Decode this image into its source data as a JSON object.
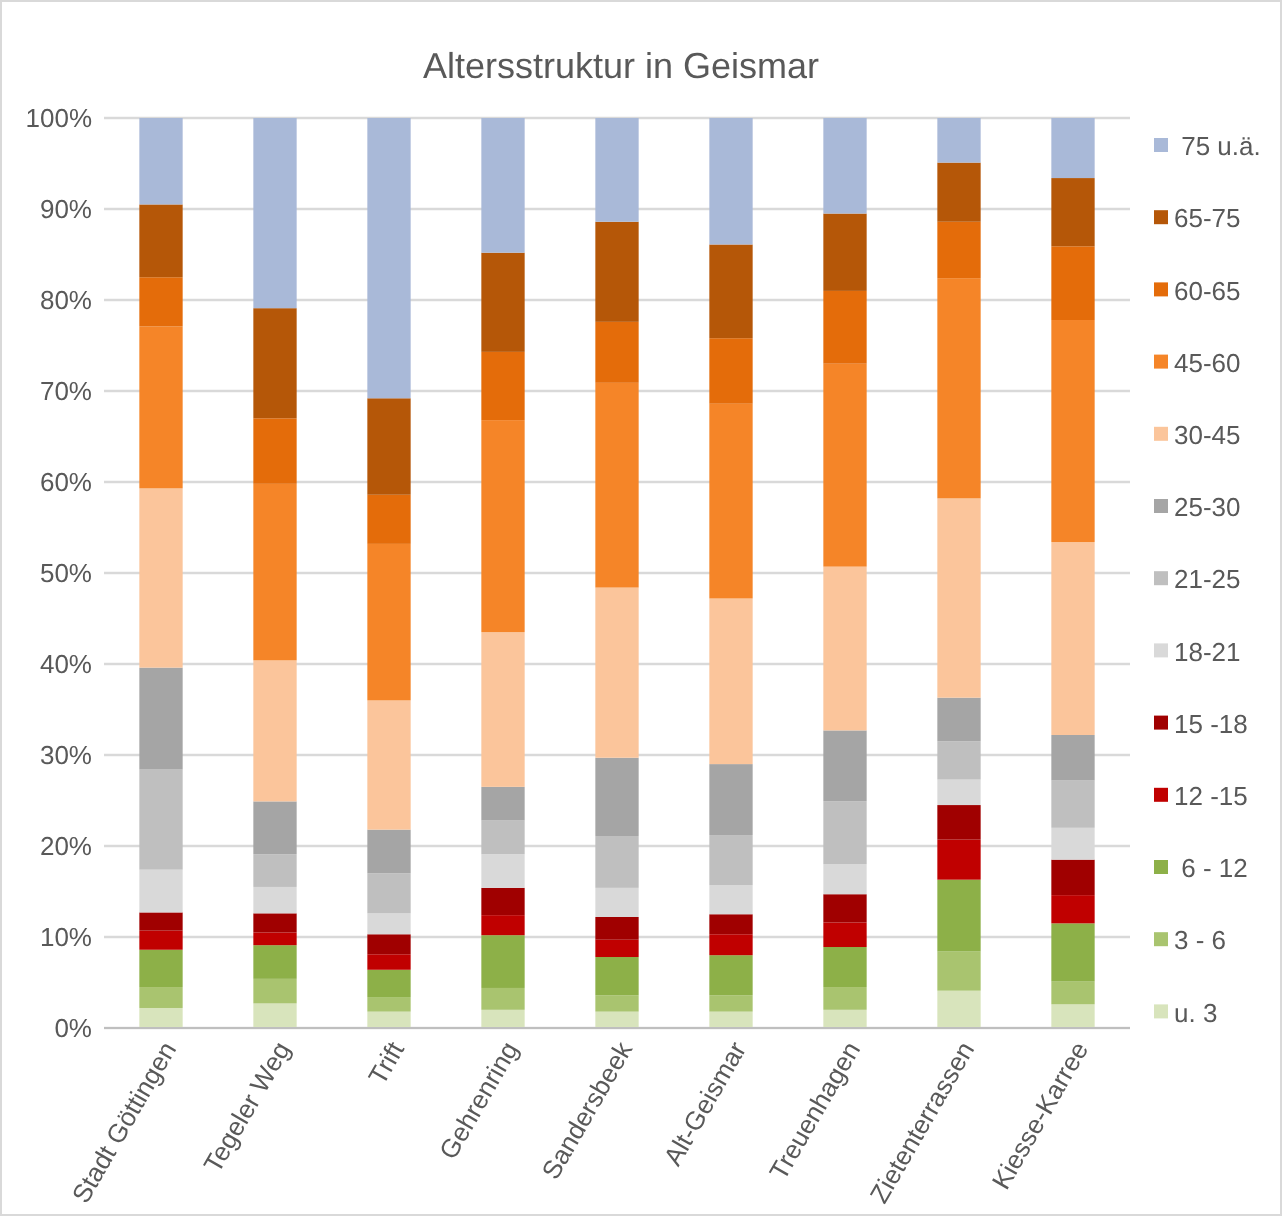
{
  "chart_data": {
    "type": "bar",
    "title": "Altersstruktur in Geismar",
    "stacked": true,
    "legend": "right",
    "grid": "y",
    "categories": [
      "Stadt Göttingen",
      "Tegeler Weg",
      "Trift",
      "Gehrenring",
      "Sandersbeek",
      "Alt-Geismar",
      "Treuenhagen",
      "Zietenterrassen",
      "Kiesse-Karree"
    ],
    "ylim": [
      0,
      100
    ],
    "yticks": [
      {
        "value": 0,
        "label": "0%"
      },
      {
        "value": 10,
        "label": "10%"
      },
      {
        "value": 20,
        "label": "20%"
      },
      {
        "value": 30,
        "label": "30%"
      },
      {
        "value": 40,
        "label": "40%"
      },
      {
        "value": 50,
        "label": "50%"
      },
      {
        "value": 60,
        "label": "60%"
      },
      {
        "value": 70,
        "label": "70%"
      },
      {
        "value": 80,
        "label": "80%"
      },
      {
        "value": 90,
        "label": "90%"
      },
      {
        "value": 100,
        "label": "100%"
      }
    ],
    "series": [
      {
        "name": "u. 3",
        "color": "#d8e4bc",
        "values": [
          2.2,
          2.7,
          1.8,
          2.0,
          1.8,
          1.8,
          2.0,
          4.1,
          2.6
        ]
      },
      {
        "name": "3 - 6",
        "color": "#a9c46f",
        "values": [
          2.3,
          2.7,
          1.6,
          2.4,
          1.8,
          1.8,
          2.5,
          4.3,
          2.5
        ]
      },
      {
        "name": " 6 - 12",
        "color": "#8db048",
        "values": [
          4.1,
          3.7,
          3.0,
          5.8,
          4.2,
          4.4,
          4.4,
          7.9,
          6.4
        ]
      },
      {
        "name": "12 -15",
        "color": "#c00000",
        "values": [
          2.1,
          1.4,
          1.7,
          2.2,
          1.9,
          2.3,
          2.7,
          4.4,
          3.1
        ]
      },
      {
        "name": "15 -18",
        "color": "#a00000",
        "values": [
          2.0,
          2.1,
          2.2,
          3.0,
          2.5,
          2.2,
          3.1,
          3.8,
          3.9
        ]
      },
      {
        "name": "18-21",
        "color": "#d9d9d9",
        "values": [
          4.7,
          2.9,
          2.3,
          3.7,
          3.2,
          3.2,
          3.3,
          2.8,
          3.5
        ]
      },
      {
        "name": "21-25",
        "color": "#bfbfbf",
        "values": [
          11.0,
          3.6,
          4.4,
          3.7,
          5.7,
          5.5,
          6.9,
          4.2,
          5.2
        ]
      },
      {
        "name": "25-30",
        "color": "#a5a5a5",
        "values": [
          11.2,
          5.8,
          4.8,
          3.7,
          8.6,
          7.8,
          7.8,
          4.8,
          5.0
        ]
      },
      {
        "name": "30-45",
        "color": "#fbc59b",
        "values": [
          19.7,
          15.5,
          14.2,
          17.0,
          18.7,
          18.2,
          18.0,
          21.9,
          21.2
        ]
      },
      {
        "name": "45-60",
        "color": "#f58528",
        "values": [
          17.8,
          19.4,
          17.2,
          23.3,
          22.5,
          21.4,
          22.3,
          24.2,
          24.4
        ]
      },
      {
        "name": "60-65",
        "color": "#e46c0a",
        "values": [
          5.4,
          7.2,
          5.4,
          7.5,
          6.7,
          7.2,
          8.0,
          6.2,
          8.1
        ]
      },
      {
        "name": "65-75",
        "color": "#b55708",
        "values": [
          8.0,
          12.1,
          10.6,
          10.9,
          11.0,
          10.3,
          8.5,
          6.5,
          7.5
        ]
      },
      {
        "name": " 75 u.ä.",
        "color": "#a9b9d8",
        "values": [
          9.5,
          20.9,
          30.8,
          14.8,
          11.4,
          13.9,
          10.5,
          4.9,
          6.6
        ]
      }
    ]
  }
}
